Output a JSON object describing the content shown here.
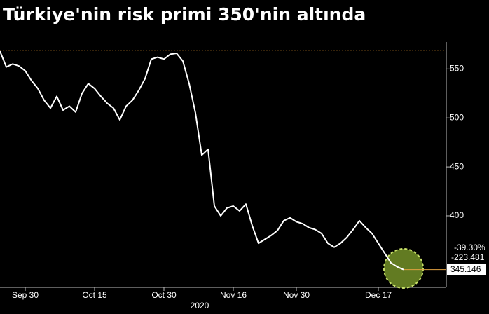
{
  "chart_data": {
    "type": "line",
    "title": "Türkiye'nin risk primi 350'nin altında",
    "year_label": "2020",
    "x": [
      "2020-09-24",
      "2020-09-25",
      "2020-09-28",
      "2020-09-29",
      "2020-09-30",
      "2020-10-01",
      "2020-10-02",
      "2020-10-05",
      "2020-10-06",
      "2020-10-07",
      "2020-10-08",
      "2020-10-09",
      "2020-10-12",
      "2020-10-13",
      "2020-10-14",
      "2020-10-15",
      "2020-10-16",
      "2020-10-19",
      "2020-10-20",
      "2020-10-21",
      "2020-10-22",
      "2020-10-23",
      "2020-10-26",
      "2020-10-27",
      "2020-10-28",
      "2020-10-29",
      "2020-10-30",
      "2020-11-02",
      "2020-11-03",
      "2020-11-04",
      "2020-11-05",
      "2020-11-06",
      "2020-11-09",
      "2020-11-10",
      "2020-11-11",
      "2020-11-12",
      "2020-11-13",
      "2020-11-16",
      "2020-11-17",
      "2020-11-18",
      "2020-11-19",
      "2020-11-20",
      "2020-11-23",
      "2020-11-24",
      "2020-11-25",
      "2020-11-26",
      "2020-11-27",
      "2020-11-30",
      "2020-12-01",
      "2020-12-02",
      "2020-12-03",
      "2020-12-04",
      "2020-12-07",
      "2020-12-08",
      "2020-12-09",
      "2020-12-10",
      "2020-12-11",
      "2020-12-14",
      "2020-12-15",
      "2020-12-16",
      "2020-12-17",
      "2020-12-18",
      "2020-12-21",
      "2020-12-22",
      "2020-12-23"
    ],
    "series": [
      {
        "color": "#ffffff",
        "values": [
          568,
          552,
          555,
          553,
          548,
          538,
          530,
          518,
          510,
          522,
          508,
          512,
          506,
          525,
          535,
          530,
          522,
          515,
          510,
          498,
          512,
          518,
          528,
          540,
          560,
          562,
          560,
          565,
          566,
          558,
          535,
          505,
          462,
          468,
          410,
          400,
          408,
          410,
          405,
          412,
          390,
          372,
          376,
          380,
          385,
          395,
          398,
          394,
          392,
          388,
          386,
          382,
          372,
          368,
          372,
          378,
          386,
          395,
          388,
          382,
          372,
          362,
          352,
          348,
          345.146
        ]
      }
    ],
    "last_value_label": "345.146",
    "change_labels": [
      "-39.30%",
      "-223.481"
    ],
    "reference_line": {
      "value": 569,
      "color": "#d98c2b"
    },
    "ylim": [
      327,
      576
    ],
    "yticks": [
      400,
      450,
      500,
      550
    ],
    "xticks": [
      {
        "value": "2020-09-30",
        "label": "Sep 30"
      },
      {
        "value": "2020-10-15",
        "label": "Oct 15"
      },
      {
        "value": "2020-10-30",
        "label": "Oct 30"
      },
      {
        "value": "2020-11-16",
        "label": "Nov 16"
      },
      {
        "value": "2020-11-30",
        "label": "Nov 30"
      },
      {
        "value": "2020-12-17",
        "label": "Dec 17"
      }
    ]
  }
}
